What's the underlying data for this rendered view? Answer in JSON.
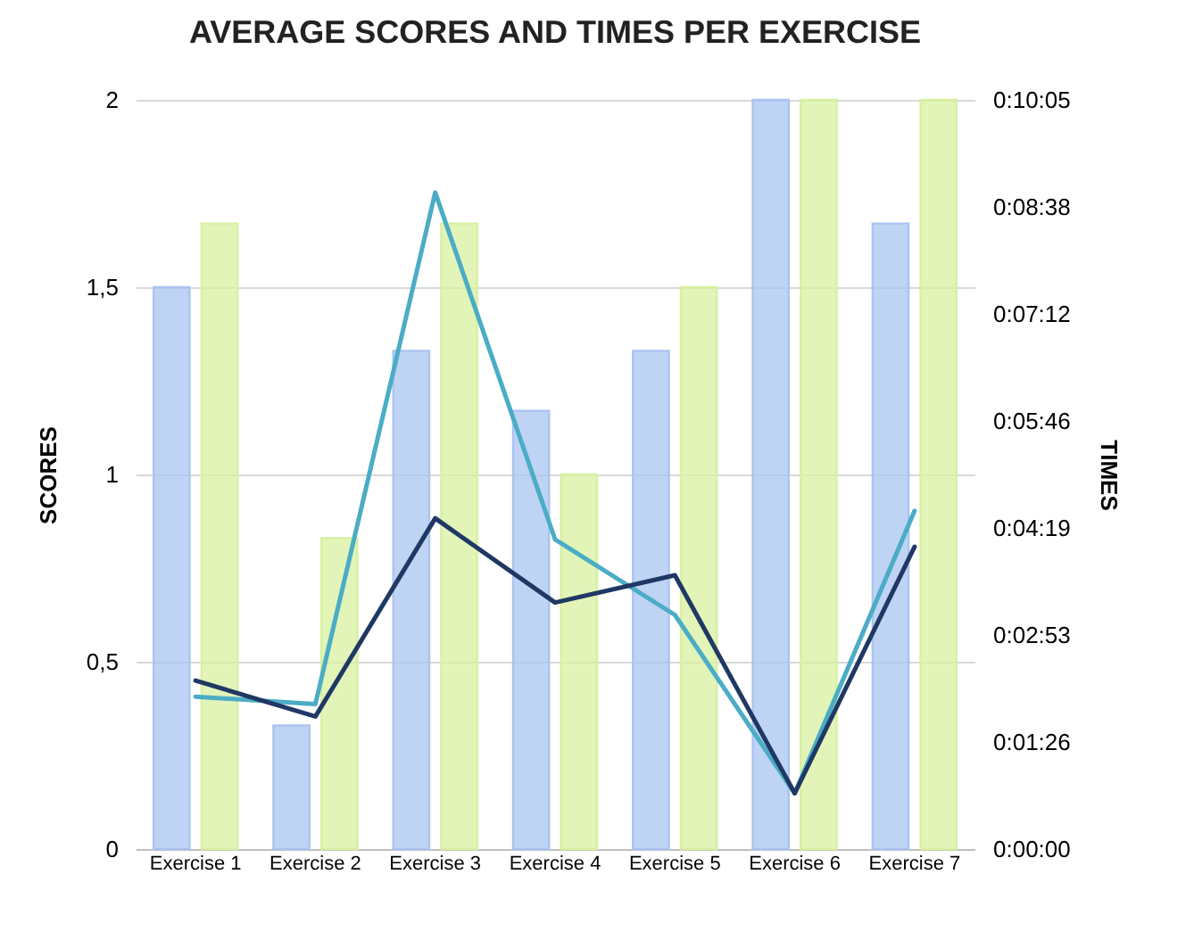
{
  "chart_data": {
    "type": "bar",
    "title": "AVERAGE SCORES AND TIMES PER EXERCISE",
    "ylabel": "SCORES",
    "y2label": "TIMES",
    "categories": [
      "Exercise 1",
      "Exercise 2",
      "Exercise 3",
      "Exercise 4",
      "Exercise 5",
      "Exercise 6",
      "Exercise 7"
    ],
    "series": [
      {
        "color": "#a9c4f0",
        "values": [
          1.5,
          0.33,
          1.33,
          1.17,
          1.33,
          2,
          1.67
        ]
      },
      {
        "color": "#d8f0a0",
        "values": [
          1.67,
          0.83,
          1.67,
          1.0,
          1.5,
          2,
          2
        ]
      },
      {
        "type": "line",
        "axis": "y2",
        "color": "#4bacc6",
        "values": [
          123,
          117,
          530,
          250,
          189,
          45,
          273
        ]
      },
      {
        "type": "line",
        "axis": "y2",
        "color": "#1f3864",
        "values": [
          136,
          107,
          267,
          199,
          221,
          45,
          244
        ]
      }
    ],
    "ylim": [
      0,
      2
    ],
    "yticks": [
      0,
      {
        "value": 0.5,
        "label": "0,5"
      },
      1,
      {
        "value": 1.5,
        "label": "1,5"
      },
      2
    ],
    "y2lim": [
      0,
      604.8
    ],
    "y2ticks": [
      {
        "value": 0,
        "label": "0:00:00"
      },
      {
        "value": 86.4,
        "label": "0:01:26"
      },
      {
        "value": 172.8,
        "label": "0:02:53"
      },
      {
        "value": 259.2,
        "label": "0:04:19"
      },
      {
        "value": 345.6,
        "label": "0:05:46"
      },
      {
        "value": 432,
        "label": "0:07:12"
      },
      {
        "value": 518.4,
        "label": "0:08:38"
      },
      {
        "value": 604.8,
        "label": "0:10:05"
      }
    ],
    "grid": "y"
  }
}
